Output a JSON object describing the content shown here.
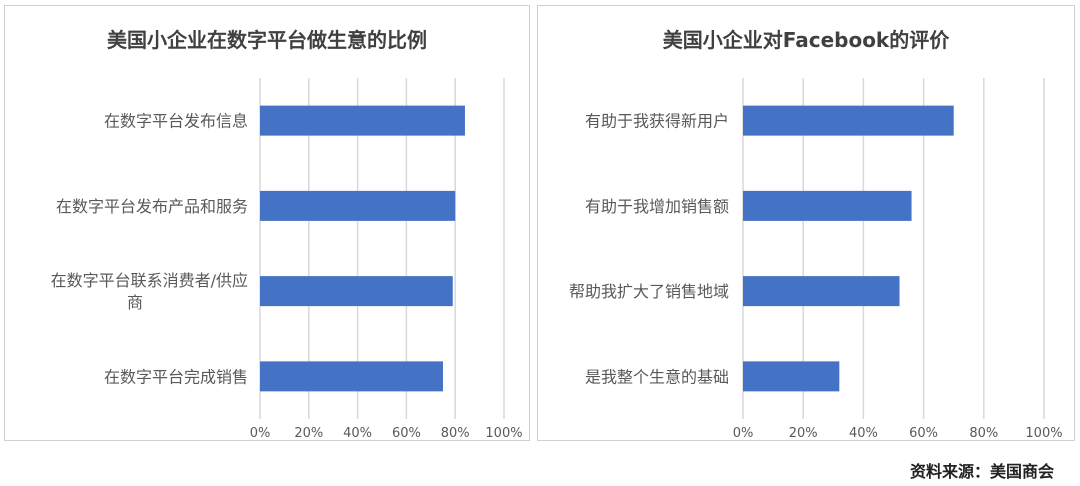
{
  "chart_data": [
    {
      "type": "bar",
      "orientation": "horizontal",
      "title": "美国小企业在数字平台做生意的比例",
      "categories": [
        "在数字平台发布信息",
        "在数字平台发布产品和服务",
        "在数字平台联系消费者/供应商",
        "在数字平台完成销售"
      ],
      "category_lines": [
        [
          "在数字平台发布信息"
        ],
        [
          "在数字平台发布产品和服务"
        ],
        [
          "在数字平台联系消费者/供应",
          "商"
        ],
        [
          "在数字平台完成销售"
        ]
      ],
      "values": [
        84,
        80,
        79,
        75
      ],
      "xlim": [
        0,
        100
      ],
      "xticks": [
        "0%",
        "20%",
        "40%",
        "60%",
        "80%",
        "100%"
      ],
      "tick_values": [
        0,
        20,
        40,
        60,
        80,
        100
      ],
      "grid": true,
      "bar_color": "#4472c4",
      "grid_color": "#d9d9d9"
    },
    {
      "type": "bar",
      "orientation": "horizontal",
      "title": "美国小企业对Facebook的评价",
      "categories": [
        "有助于我获得新用户",
        "有助于我增加销售额",
        "帮助我扩大了销售地域",
        "是我整个生意的基础"
      ],
      "category_lines": [
        [
          "有助于我获得新用户"
        ],
        [
          "有助于我增加销售额"
        ],
        [
          "帮助我扩大了销售地域"
        ],
        [
          "是我整个生意的基础"
        ]
      ],
      "values": [
        70,
        56,
        52,
        32
      ],
      "xlim": [
        0,
        100
      ],
      "xticks": [
        "0%",
        "20%",
        "40%",
        "60%",
        "80%",
        "100%"
      ],
      "tick_values": [
        0,
        20,
        40,
        60,
        80,
        100
      ],
      "grid": true,
      "bar_color": "#4472c4",
      "grid_color": "#d9d9d9"
    }
  ],
  "source": "资料来源：美国商会"
}
